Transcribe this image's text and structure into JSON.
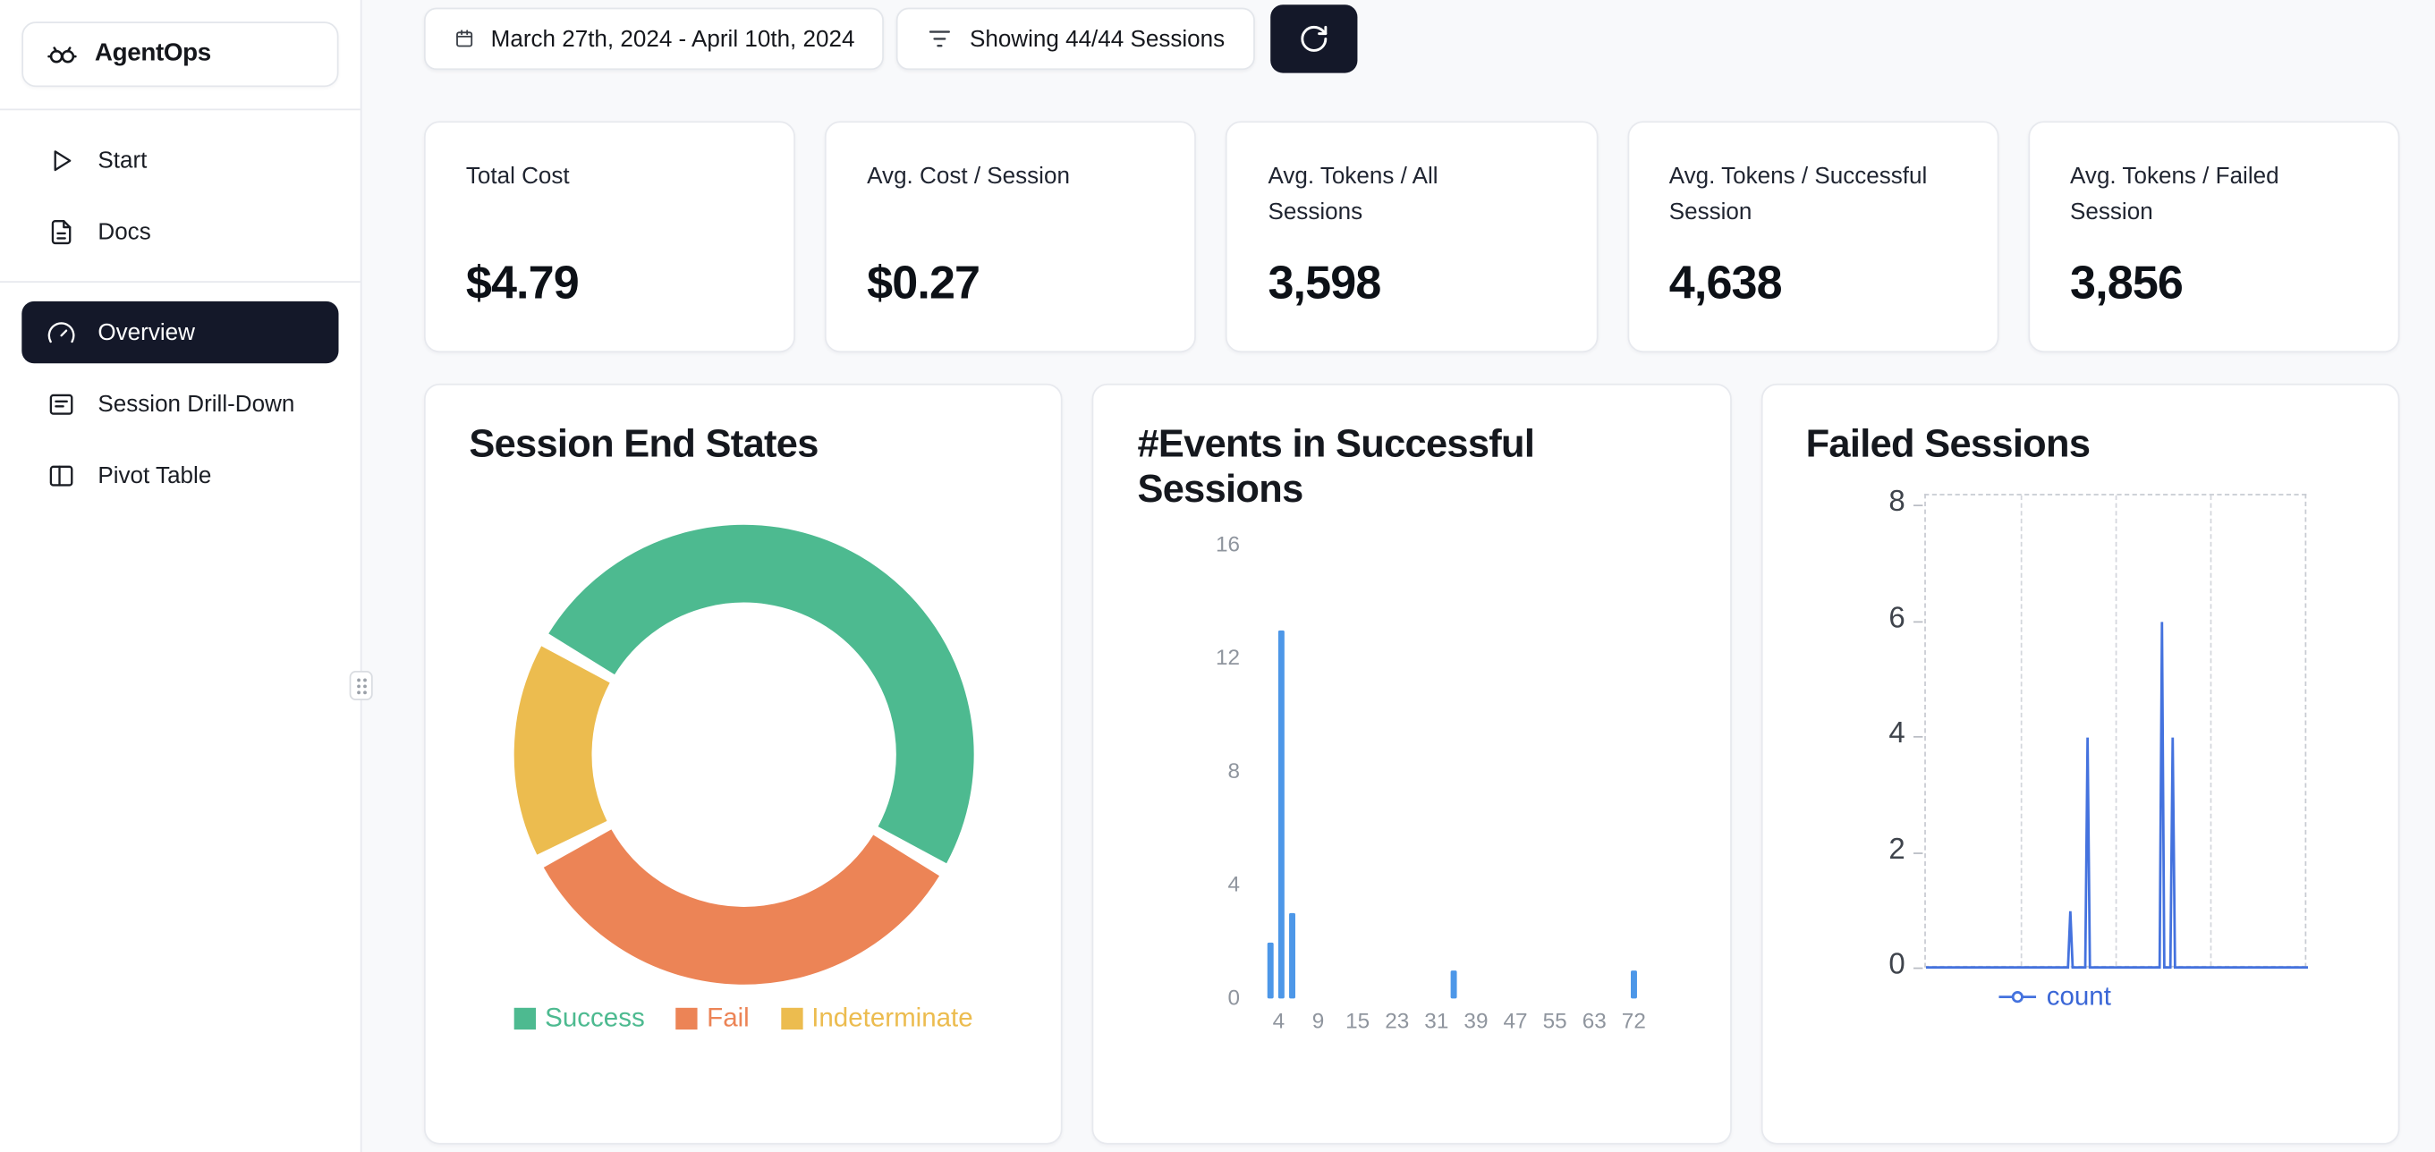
{
  "app": {
    "name": "AgentOps"
  },
  "sidebar": {
    "nav_top": [
      {
        "label": "Start",
        "icon": "play-icon"
      },
      {
        "label": "Docs",
        "icon": "docs-icon"
      }
    ],
    "nav_main": [
      {
        "label": "Overview",
        "icon": "gauge-icon",
        "active": true
      },
      {
        "label": "Session Drill-Down",
        "icon": "list-details-icon",
        "active": false
      },
      {
        "label": "Pivot Table",
        "icon": "columns-icon",
        "active": false
      }
    ]
  },
  "toolbar": {
    "date_range": "March 27th, 2024 - April 10th, 2024",
    "sessions_filter": "Showing 44/44 Sessions"
  },
  "stats": [
    {
      "label": "Total Cost",
      "value": "$4.79"
    },
    {
      "label": "Avg. Cost / Session",
      "value": "$0.27"
    },
    {
      "label": "Avg. Tokens / All Sessions",
      "value": "3,598"
    },
    {
      "label": "Avg. Tokens / Successful Session",
      "value": "4,638"
    },
    {
      "label": "Avg. Tokens / Failed Session",
      "value": "3,856"
    }
  ],
  "chart_data": [
    {
      "type": "pie",
      "donut": true,
      "title": "Session End States",
      "start_angle_deg": 150,
      "legend_position": "bottom",
      "segments": [
        {
          "label": "Success",
          "pct": 50,
          "color": "#4DBA90"
        },
        {
          "label": "Fail",
          "pct": 34,
          "color": "#EC8456"
        },
        {
          "label": "Indeterminate",
          "pct": 16,
          "color": "#ECBC4F"
        }
      ]
    },
    {
      "type": "bar",
      "title": "#Events in Successful Sessions",
      "x_ticks": [
        "4",
        "9",
        "15",
        "23",
        "31",
        "39",
        "47",
        "55",
        "63",
        "72"
      ],
      "y_ticks": [
        0,
        4,
        8,
        12,
        16
      ],
      "ylim": [
        0,
        16
      ],
      "bar_color": "#4D97E8",
      "bars": [
        {
          "events": 4,
          "count": 2,
          "pos": 0.028
        },
        {
          "events": 5,
          "count": 13,
          "pos": 0.052
        },
        {
          "events": 6,
          "count": 3,
          "pos": 0.074
        },
        {
          "events": 36,
          "count": 1,
          "pos": 0.435
        },
        {
          "events": 70,
          "count": 1,
          "pos": 0.835
        }
      ]
    },
    {
      "type": "line",
      "title": "Failed Sessions",
      "y_ticks": [
        0,
        2,
        4,
        6,
        8
      ],
      "ylim": [
        0,
        8
      ],
      "grid": "dashed",
      "legend_position": "bottom",
      "series": [
        {
          "name": "count",
          "color": "#4472DE",
          "baseline": 0,
          "spikes": [
            {
              "pos": 0.378,
              "value": 1
            },
            {
              "pos": 0.423,
              "value": 4
            },
            {
              "pos": 0.618,
              "value": 6
            },
            {
              "pos": 0.646,
              "value": 4
            }
          ]
        }
      ]
    }
  ],
  "colors": {
    "accent_dark": "#141829",
    "background": "#F8F9FB",
    "card_border": "#E7E9EE",
    "success": "#4DBA90",
    "fail": "#EC8456",
    "indeterminate": "#ECBC4F",
    "chart_blue": "#4D97E8",
    "count_blue": "#4472DE"
  }
}
